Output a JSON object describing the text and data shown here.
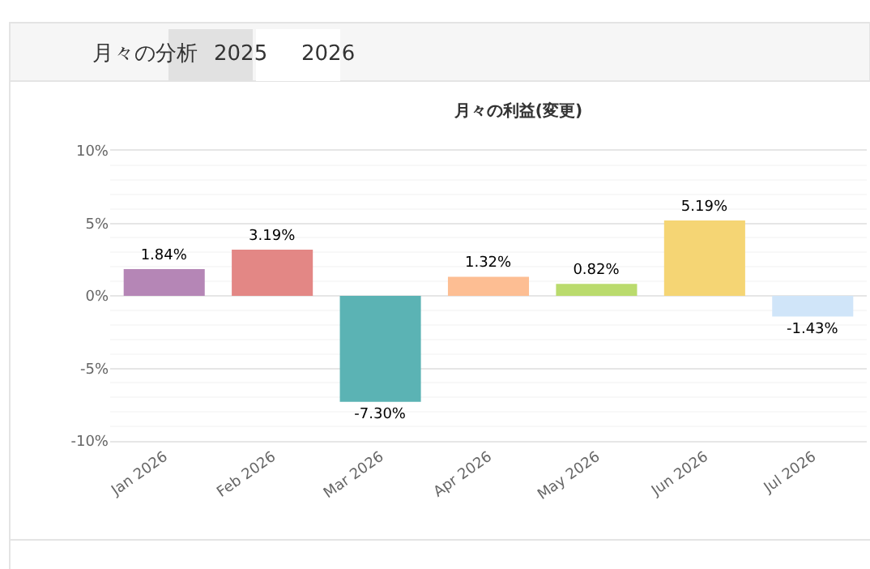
{
  "chart_data": {
    "type": "bar",
    "title": "月々の利益(変更)",
    "annotations": [
      "月々の分析",
      "2025",
      "2026"
    ],
    "categories": [
      "Jan 2026",
      "Feb 2026",
      "Mar 2026",
      "Apr 2026",
      "May 2026",
      "Jun 2026",
      "Jul 2026"
    ],
    "values": [
      1.84,
      3.19,
      -7.3,
      1.32,
      0.82,
      5.19,
      -1.43
    ],
    "value_labels": [
      "1.84%",
      "3.19%",
      "-7.30%",
      "1.32%",
      "0.82%",
      "5.19%",
      "-1.43%"
    ],
    "colors": [
      "#b586b6",
      "#e38785",
      "#5bb3b4",
      "#fdbe93",
      "#badb6d",
      "#f5d574",
      "#d0e5f9"
    ],
    "ylim": [
      -10,
      10
    ],
    "yticks": [
      {
        "value": -10,
        "label": "-10%"
      },
      {
        "value": -5,
        "label": "-5%"
      },
      {
        "value": 0,
        "label": "0%"
      },
      {
        "value": 5,
        "label": "5%"
      },
      {
        "value": 10,
        "label": "10%"
      }
    ],
    "grid": "y"
  }
}
